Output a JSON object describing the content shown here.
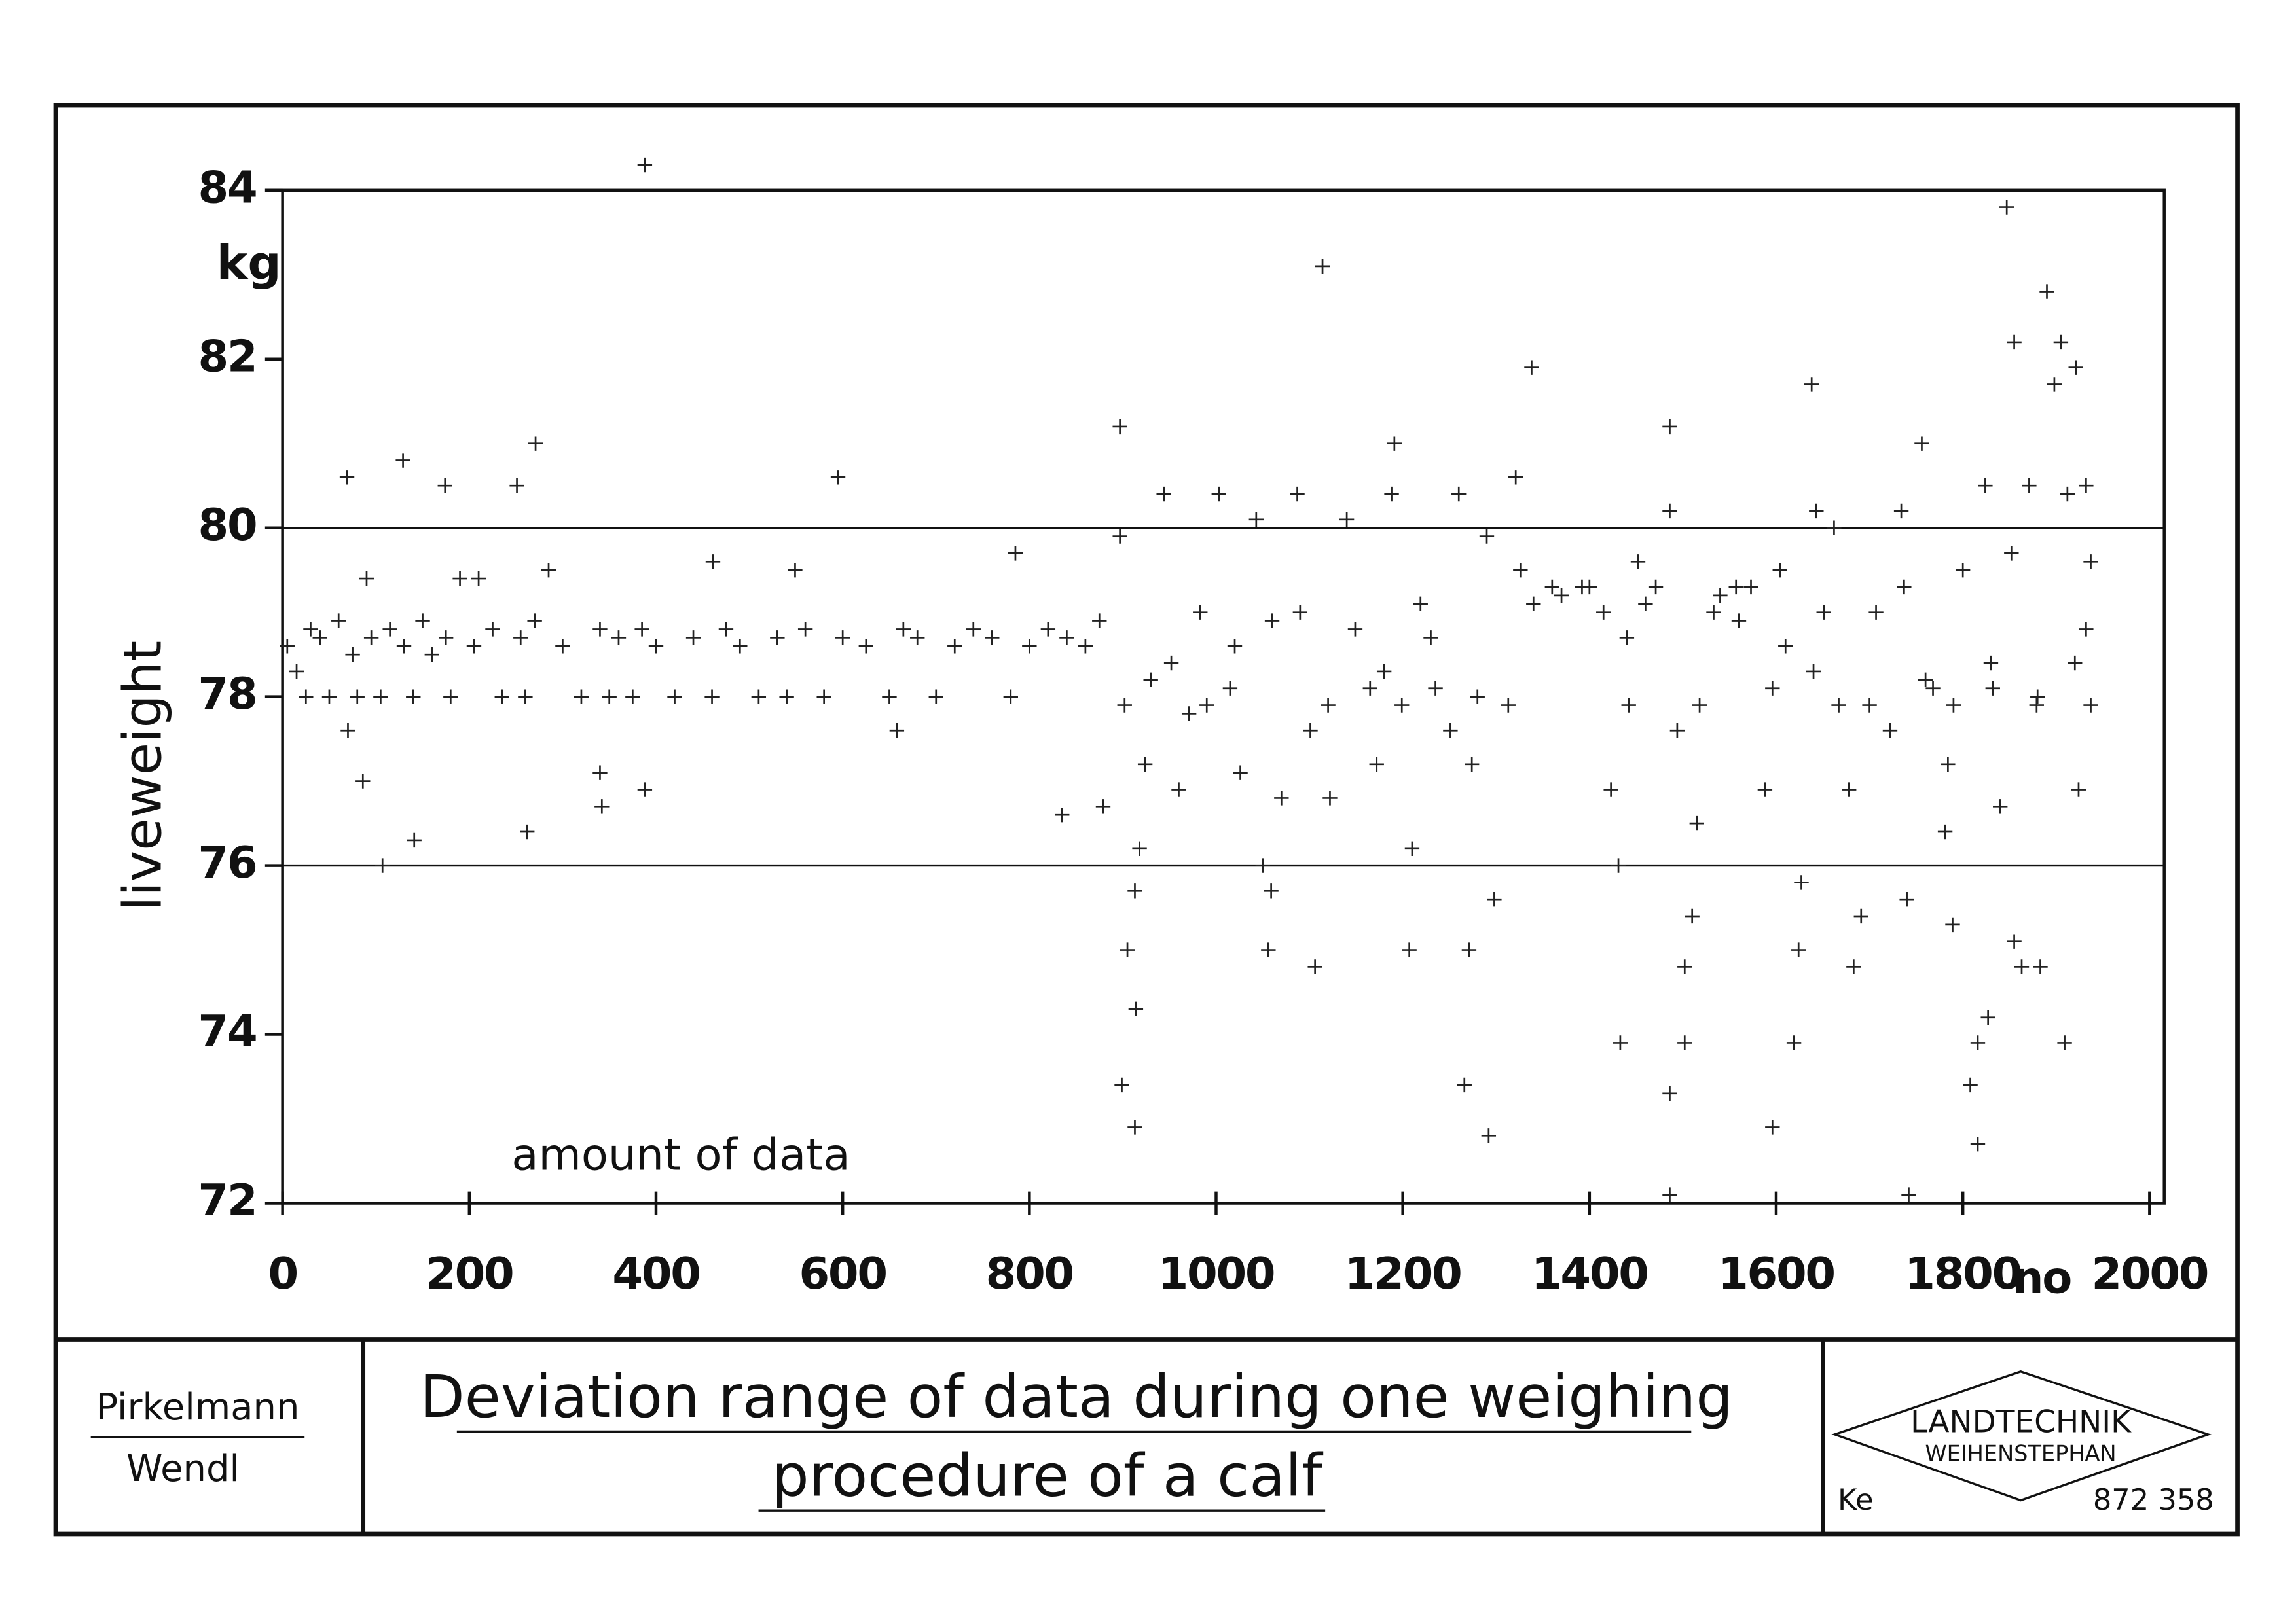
{
  "chart_data": {
    "type": "scatter",
    "ylabel": "liveweight",
    "yunit": "kg",
    "xlabel": "no",
    "annotation": "amount of data",
    "color": "#222222",
    "xlim": [
      0,
      2000
    ],
    "ylim": [
      72,
      84
    ],
    "xticks": [
      0,
      200,
      400,
      600,
      800,
      1000,
      1200,
      1400,
      1600,
      1800,
      2000
    ],
    "yticks": [
      72,
      74,
      76,
      78,
      80,
      82,
      84
    ],
    "hlines": [
      80,
      76
    ],
    "x": [
      5,
      15,
      25,
      30,
      40,
      50,
      60,
      75,
      80,
      90,
      95,
      105,
      115,
      130,
      140,
      150,
      160,
      175,
      180,
      190,
      205,
      210,
      225,
      235,
      255,
      260,
      270,
      285,
      300,
      320,
      340,
      350,
      360,
      375,
      385,
      400,
      420,
      440,
      460,
      475,
      490,
      510,
      530,
      540,
      560,
      580,
      600,
      625,
      650,
      665,
      680,
      700,
      720,
      740,
      760,
      780,
      800,
      820,
      840,
      860,
      875,
      69,
      70,
      86,
      129,
      141,
      174,
      107,
      251,
      262,
      271,
      340,
      342,
      388,
      388,
      461,
      549,
      595,
      658,
      835,
      879,
      785,
      897,
      897,
      902,
      899,
      913,
      905,
      914,
      913,
      918,
      924,
      944,
      952,
      960,
      971,
      983,
      1003,
      1015,
      1026,
      1043,
      1050,
      1056,
      1059,
      1070,
      1087,
      1090,
      1101,
      1114,
      1106,
      1122,
      1140,
      1149,
      1165,
      1172,
      1191,
      1188,
      1199,
      1207,
      1210,
      1219,
      1235,
      1251,
      1260,
      1266,
      1271,
      1274,
      1292,
      1298,
      1290,
      1313,
      1321,
      1326,
      1338,
      1360,
      1392,
      1415,
      1423,
      1431,
      1433,
      1442,
      1452,
      1471,
      1486,
      1486,
      1486,
      1486,
      1494,
      1502,
      1502,
      1510,
      1515,
      1518,
      1533,
      1557,
      1573,
      1596,
      1588,
      1596,
      1604,
      1619,
      1624,
      1627,
      1638,
      1643,
      1651,
      1662,
      1667,
      1678,
      1683,
      1691,
      1707,
      1722,
      1734,
      1737,
      1740,
      1742,
      1756,
      1768,
      1784,
      1781,
      1789,
      1800,
      1808,
      1816,
      1816,
      1827,
      1824,
      1832,
      1840,
      1847,
      1855,
      1852,
      1855,
      1863,
      1871,
      1879,
      1883,
      1890,
      1898,
      1905,
      1909,
      1912,
      1921,
      1924,
      1932,
      1937,
      1937,
      1932,
      930,
      990,
      1020,
      1060,
      1120,
      1180,
      1230,
      1280,
      1340,
      1370,
      1400,
      1440,
      1460,
      1540,
      1560,
      1610,
      1640,
      1700,
      1760,
      1790,
      1830,
      1880,
      1920
    ],
    "values": [
      78.6,
      78.3,
      78,
      78.8,
      78.7,
      78,
      78.9,
      78.5,
      78,
      79.4,
      78.7,
      78,
      78.8,
      78.6,
      78,
      78.9,
      78.5,
      78.7,
      78,
      79.4,
      78.6,
      79.4,
      78.8,
      78,
      78.7,
      78,
      78.9,
      79.5,
      78.6,
      78,
      78.8,
      78,
      78.7,
      78,
      78.8,
      78.6,
      78,
      78.7,
      78,
      78.8,
      78.6,
      78,
      78.7,
      78,
      78.8,
      78,
      78.7,
      78.6,
      78,
      78.8,
      78.7,
      78,
      78.6,
      78.8,
      78.7,
      78,
      78.6,
      78.8,
      78.7,
      78.6,
      78.9,
      80.6,
      77.6,
      77,
      80.8,
      76.3,
      80.5,
      76,
      80.5,
      76.4,
      81,
      77.1,
      76.7,
      84.3,
      76.9,
      79.6,
      79.5,
      80.6,
      77.6,
      76.6,
      76.7,
      79.7,
      81.2,
      79.9,
      77.9,
      73.4,
      72.9,
      75,
      74.3,
      75.7,
      76.2,
      77.2,
      80.4,
      78.4,
      76.9,
      77.8,
      79,
      80.4,
      78.1,
      77.1,
      80.1,
      76,
      75,
      75.7,
      76.8,
      80.4,
      79,
      77.6,
      83.1,
      74.8,
      76.8,
      80.1,
      78.8,
      78.1,
      77.2,
      81,
      80.4,
      77.9,
      75,
      76.2,
      79.1,
      78.1,
      77.6,
      80.4,
      73.4,
      75,
      77.2,
      72.8,
      75.6,
      79.9,
      77.9,
      80.6,
      79.5,
      81.9,
      79.3,
      79.3,
      79,
      76.9,
      76,
      73.9,
      77.9,
      79.6,
      79.3,
      81.2,
      80.2,
      73.3,
      72.1,
      77.6,
      73.9,
      74.8,
      75.4,
      76.5,
      77.9,
      79,
      79.3,
      79.3,
      72.9,
      76.9,
      78.1,
      79.5,
      73.9,
      75,
      75.8,
      81.7,
      80.2,
      79,
      80,
      77.9,
      76.9,
      74.8,
      75.4,
      79,
      77.6,
      80.2,
      79.3,
      75.6,
      72.1,
      81,
      78.1,
      77.2,
      76.4,
      75.3,
      79.5,
      73.4,
      73.9,
      72.7,
      74.2,
      80.5,
      78.1,
      76.7,
      83.8,
      82.2,
      79.7,
      75.1,
      74.8,
      80.5,
      77.9,
      74.8,
      82.8,
      81.7,
      82.2,
      73.9,
      80.4,
      81.9,
      76.9,
      80.5,
      79.6,
      77.9,
      78.8,
      78.2,
      77.9,
      78.6,
      78.9,
      77.9,
      78.3,
      78.7,
      78,
      79.1,
      79.2,
      79.3,
      78.7,
      79.1,
      79.2,
      78.9,
      78.6,
      78.3,
      77.9,
      78.2,
      77.9,
      78.4,
      78,
      78.4
    ]
  },
  "title_block": {
    "authors": [
      "Pirkelmann",
      "Wendl"
    ],
    "title": [
      "Deviation range of data during one weighing",
      "procedure of a calf"
    ],
    "logo": [
      "LANDTECHNIK",
      "WEIHENSTEPHAN"
    ],
    "initials": "Ke",
    "number": "872 358"
  }
}
